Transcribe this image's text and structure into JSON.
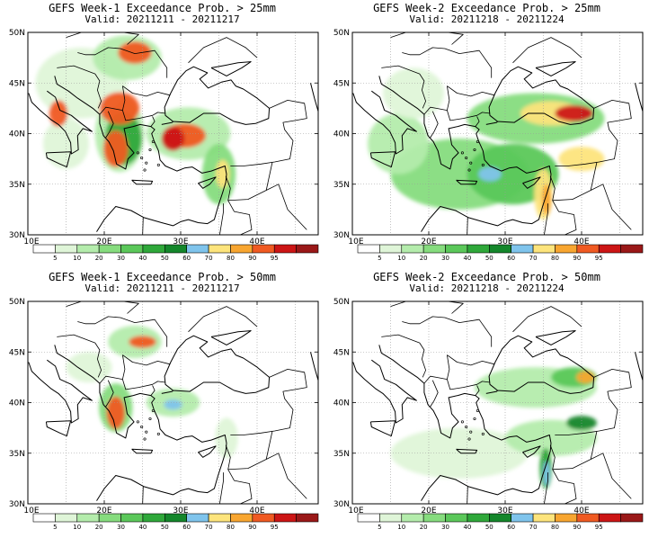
{
  "palette": {
    "levels": [
      "5",
      "10",
      "20",
      "30",
      "40",
      "50",
      "60",
      "70",
      "80",
      "90",
      "95"
    ],
    "colors": [
      "#ffffff",
      "#dff5d8",
      "#b4ecac",
      "#86dc7e",
      "#5bc85a",
      "#2fa83a",
      "#14872b",
      "#7fc4ec",
      "#fde47c",
      "#f8a630",
      "#f05a22",
      "#cc1515",
      "#9a1818"
    ]
  },
  "axes": {
    "lat_labels": [
      "50N",
      "45N",
      "40N",
      "35N",
      "30N"
    ],
    "lon_labels": [
      "10E",
      "20E",
      "30E",
      "40E"
    ]
  },
  "panels": [
    {
      "title": "GEFS Week-1 Exceedance Prob. > 25mm",
      "valid": "Valid: 20211211 - 20211217",
      "blobs": [
        {
          "lon": 22,
          "lat": 40,
          "rx": 3.2,
          "ry": 3.8,
          "c": 2
        },
        {
          "lon": 31,
          "lat": 40,
          "rx": 5.5,
          "ry": 2.6,
          "c": 2
        },
        {
          "lon": 17,
          "lat": 45,
          "rx": 6,
          "ry": 3.5,
          "c": 1
        },
        {
          "lon": 23,
          "lat": 47.5,
          "rx": 4.5,
          "ry": 2.2,
          "c": 2
        },
        {
          "lon": 35,
          "lat": 36,
          "rx": 2.2,
          "ry": 3,
          "c": 3
        },
        {
          "lon": 15,
          "lat": 39,
          "rx": 3,
          "ry": 2.5,
          "c": 1
        },
        {
          "lon": 22.5,
          "lat": 39.5,
          "rx": 2.4,
          "ry": 2.6,
          "c": 5
        },
        {
          "lon": 21.5,
          "lat": 38.5,
          "rx": 1.6,
          "ry": 1.8,
          "c": 10
        },
        {
          "lon": 22,
          "lat": 42.5,
          "rx": 2.6,
          "ry": 1.6,
          "c": 10
        },
        {
          "lon": 24,
          "lat": 48,
          "rx": 2.2,
          "ry": 1.1,
          "c": 10
        },
        {
          "lon": 30.5,
          "lat": 39.8,
          "rx": 2.8,
          "ry": 1.2,
          "c": 10
        },
        {
          "lon": 29,
          "lat": 39.5,
          "rx": 1.5,
          "ry": 1.2,
          "c": 11
        },
        {
          "lon": 14,
          "lat": 42,
          "rx": 1.2,
          "ry": 1.3,
          "c": 10
        },
        {
          "lon": 35.5,
          "lat": 36,
          "rx": 0.9,
          "ry": 1.4,
          "c": 8
        }
      ],
      "ticks": {
        "lat": [
          0,
          1,
          2,
          3,
          4
        ],
        "lon": [
          0,
          1,
          2,
          3
        ]
      }
    },
    {
      "title": "GEFS Week-2 Exceedance Prob. > 25mm",
      "valid": "Valid: 20211218 - 20211224",
      "blobs": [
        {
          "lon": 24,
          "lat": 36,
          "rx": 9,
          "ry": 3.5,
          "c": 3
        },
        {
          "lon": 31,
          "lat": 36,
          "rx": 6,
          "ry": 3,
          "c": 4
        },
        {
          "lon": 16,
          "lat": 39,
          "rx": 4,
          "ry": 3,
          "c": 2
        },
        {
          "lon": 34,
          "lat": 41.5,
          "rx": 9,
          "ry": 2.5,
          "c": 3
        },
        {
          "lon": 18,
          "lat": 44,
          "rx": 4,
          "ry": 2.5,
          "c": 1
        },
        {
          "lon": 36,
          "lat": 42,
          "rx": 4,
          "ry": 1.2,
          "c": 8
        },
        {
          "lon": 39,
          "lat": 42,
          "rx": 2.5,
          "ry": 0.8,
          "c": 11
        },
        {
          "lon": 40,
          "lat": 37.5,
          "rx": 3,
          "ry": 1.2,
          "c": 8
        },
        {
          "lon": 35,
          "lat": 34,
          "rx": 1.2,
          "ry": 2.5,
          "c": 8
        },
        {
          "lon": 35.4,
          "lat": 33.5,
          "rx": 0.6,
          "ry": 1.5,
          "c": 9
        },
        {
          "lon": 28,
          "lat": 36,
          "rx": 1.5,
          "ry": 0.7,
          "c": 7
        }
      ],
      "ticks": {
        "lat": [
          0,
          1,
          2,
          3,
          4
        ],
        "lon": [
          0,
          1,
          2,
          3
        ]
      }
    },
    {
      "title": "GEFS Week-1 Exceedance Prob. > 50mm",
      "valid": "Valid: 20211211 - 20211217",
      "blobs": [
        {
          "lon": 21.5,
          "lat": 39.5,
          "rx": 2.2,
          "ry": 2.4,
          "c": 3
        },
        {
          "lon": 24,
          "lat": 46,
          "rx": 3.5,
          "ry": 1.6,
          "c": 2
        },
        {
          "lon": 29,
          "lat": 40,
          "rx": 3.5,
          "ry": 1.4,
          "c": 2
        },
        {
          "lon": 18,
          "lat": 43.5,
          "rx": 3,
          "ry": 1.5,
          "c": 1
        },
        {
          "lon": 36,
          "lat": 36.5,
          "rx": 1.5,
          "ry": 2,
          "c": 1
        },
        {
          "lon": 21.5,
          "lat": 39,
          "rx": 1.2,
          "ry": 1.6,
          "c": 10
        },
        {
          "lon": 25,
          "lat": 46,
          "rx": 1.8,
          "ry": 0.6,
          "c": 10
        },
        {
          "lon": 29,
          "lat": 39.8,
          "rx": 1.2,
          "ry": 0.5,
          "c": 7
        }
      ],
      "ticks": {
        "lat": [
          0,
          1,
          2,
          3,
          4
        ],
        "lon": [
          0,
          1,
          2,
          3
        ]
      }
    },
    {
      "title": "GEFS Week-2 Exceedance Prob. > 50mm",
      "valid": "Valid: 20211218 - 20211224",
      "blobs": [
        {
          "lon": 24,
          "lat": 35,
          "rx": 9,
          "ry": 2.5,
          "c": 1
        },
        {
          "lon": 34,
          "lat": 41.5,
          "rx": 8,
          "ry": 2,
          "c": 2
        },
        {
          "lon": 36,
          "lat": 36.5,
          "rx": 6,
          "ry": 1.8,
          "c": 2
        },
        {
          "lon": 39,
          "lat": 42.5,
          "rx": 3,
          "ry": 1,
          "c": 4
        },
        {
          "lon": 40.5,
          "lat": 42.5,
          "rx": 1.2,
          "ry": 0.6,
          "c": 9
        },
        {
          "lon": 40,
          "lat": 38,
          "rx": 2,
          "ry": 0.7,
          "c": 6
        },
        {
          "lon": 35.3,
          "lat": 33.5,
          "rx": 0.8,
          "ry": 2,
          "c": 5
        },
        {
          "lon": 35.4,
          "lat": 33,
          "rx": 0.4,
          "ry": 1.2,
          "c": 7
        }
      ],
      "ticks": {
        "lat": [
          0,
          1,
          2,
          3,
          4
        ],
        "lon": [
          0,
          1,
          2,
          3
        ]
      }
    }
  ]
}
